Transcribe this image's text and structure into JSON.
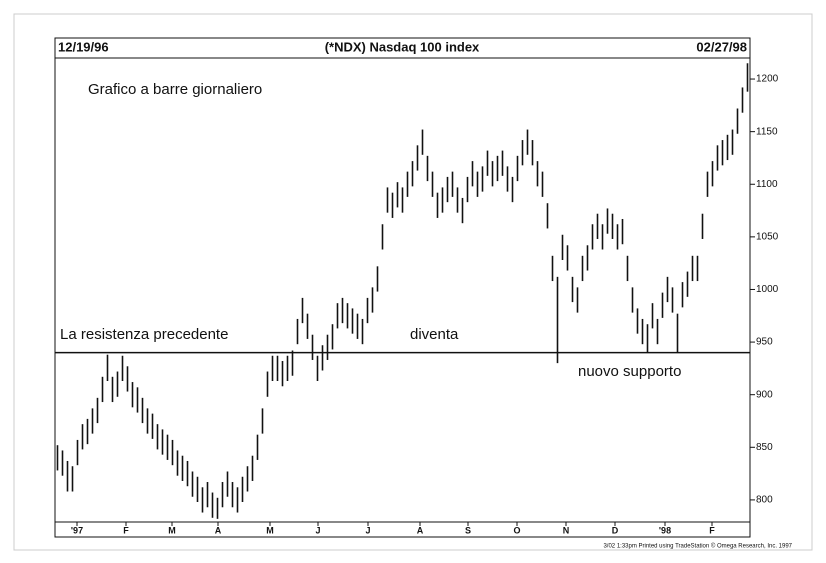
{
  "chart_data": {
    "type": "ohlc_bar",
    "title": "(*NDX) Nasdaq 100 index",
    "start_date": "12/19/96",
    "end_date": "02/27/98",
    "annotations": [
      "Grafico a barre giornaliero",
      "La resistenza precedente",
      "diventa",
      "nuovo supporto"
    ],
    "footer": "3/02 1:33pm Printed using TradeStation © Omega Research, Inc. 1997",
    "reference_line": 940,
    "color": "#111111",
    "ylim": [
      779,
      1220
    ],
    "yticks": [
      800,
      850,
      900,
      950,
      1000,
      1050,
      1100,
      1150,
      1200
    ],
    "xlim": [
      -0.5,
      138.5
    ],
    "xticks": [
      {
        "value": 3.9,
        "label": "'97"
      },
      {
        "value": 13.7,
        "label": "F"
      },
      {
        "value": 22.9,
        "label": "M"
      },
      {
        "value": 32.1,
        "label": "A"
      },
      {
        "value": 42.5,
        "label": "M"
      },
      {
        "value": 52.1,
        "label": "J"
      },
      {
        "value": 62.1,
        "label": "J"
      },
      {
        "value": 72.5,
        "label": "A"
      },
      {
        "value": 82.1,
        "label": "S"
      },
      {
        "value": 91.9,
        "label": "O"
      },
      {
        "value": 101.7,
        "label": "N"
      },
      {
        "value": 111.5,
        "label": "D"
      },
      {
        "value": 121.5,
        "label": "'98"
      },
      {
        "value": 130.9,
        "label": "F"
      }
    ],
    "high": [
      852,
      847,
      837,
      832,
      857,
      872,
      877,
      887,
      897,
      917,
      938,
      917,
      922,
      937,
      927,
      912,
      907,
      897,
      887,
      882,
      872,
      867,
      862,
      857,
      847,
      842,
      837,
      827,
      822,
      812,
      817,
      807,
      802,
      817,
      827,
      817,
      812,
      822,
      832,
      842,
      862,
      887,
      922,
      937,
      937,
      932,
      937,
      942,
      972,
      992,
      977,
      957,
      937,
      947,
      957,
      967,
      987,
      992,
      987,
      982,
      977,
      972,
      992,
      1002,
      1022,
      1062,
      1097,
      1092,
      1102,
      1097,
      1112,
      1122,
      1137,
      1152,
      1127,
      1112,
      1092,
      1097,
      1107,
      1112,
      1097,
      1087,
      1107,
      1122,
      1112,
      1117,
      1132,
      1122,
      1127,
      1132,
      1117,
      1107,
      1127,
      1142,
      1152,
      1142,
      1122,
      1112,
      1082,
      1032,
      1012,
      1052,
      1042,
      1012,
      1002,
      1032,
      1042,
      1062,
      1072,
      1062,
      1077,
      1072,
      1062,
      1067,
      1032,
      1002,
      982,
      972,
      967,
      987,
      972,
      997,
      1012,
      1002,
      977,
      1007,
      1017,
      1032,
      1032,
      1072,
      1112,
      1122,
      1137,
      1142,
      1147,
      1152,
      1172,
      1192,
      1215
    ],
    "low": [
      828,
      823,
      808,
      808,
      833,
      848,
      853,
      863,
      873,
      893,
      913,
      893,
      898,
      913,
      903,
      888,
      883,
      873,
      863,
      858,
      848,
      843,
      838,
      833,
      823,
      818,
      813,
      803,
      798,
      788,
      793,
      783,
      782,
      793,
      803,
      793,
      788,
      798,
      808,
      818,
      838,
      863,
      898,
      913,
      913,
      908,
      913,
      918,
      948,
      968,
      953,
      933,
      913,
      923,
      933,
      943,
      963,
      968,
      963,
      958,
      953,
      948,
      968,
      978,
      998,
      1038,
      1073,
      1068,
      1078,
      1073,
      1088,
      1098,
      1113,
      1128,
      1103,
      1088,
      1068,
      1073,
      1083,
      1088,
      1073,
      1063,
      1083,
      1098,
      1088,
      1093,
      1108,
      1098,
      1103,
      1108,
      1093,
      1083,
      1103,
      1118,
      1128,
      1118,
      1098,
      1088,
      1058,
      1008,
      930,
      1028,
      1018,
      988,
      978,
      1008,
      1018,
      1038,
      1048,
      1038,
      1053,
      1048,
      1038,
      1043,
      1008,
      978,
      958,
      948,
      940,
      963,
      948,
      973,
      988,
      978,
      940,
      983,
      993,
      1008,
      1008,
      1048,
      1088,
      1098,
      1113,
      1118,
      1123,
      1128,
      1148,
      1168,
      1188
    ]
  }
}
